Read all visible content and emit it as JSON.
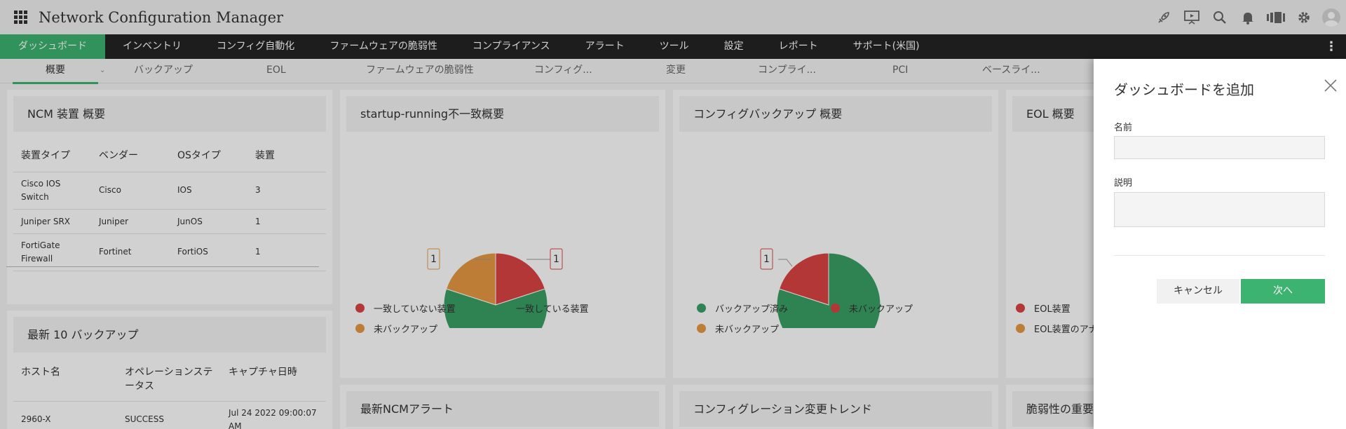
{
  "header": {
    "title": "Network Configuration Manager",
    "icons": [
      "rocket-icon",
      "presentation-icon",
      "search-icon",
      "bell-icon",
      "devices-icon",
      "gear-icon",
      "user-avatar"
    ]
  },
  "nav": {
    "items": [
      "ダッシュボード",
      "インベントリ",
      "コンフィグ自動化",
      "ファームウェアの脆弱性",
      "コンプライアンス",
      "アラート",
      "ツール",
      "設定",
      "レポート",
      "サポート(米国)"
    ],
    "active_index": 0
  },
  "subtabs": {
    "items": [
      "概要",
      "バックアップ",
      "EOL",
      "ファームウェアの脆弱性",
      "コンフィグ...",
      "変更",
      "コンプライ...",
      "PCI",
      "ベースライ..."
    ],
    "active_index": 0
  },
  "device_summary": {
    "title": "NCM 装置 概要",
    "columns": [
      "装置タイプ",
      "ベンダー",
      "OSタイプ",
      "装置"
    ],
    "rows": [
      {
        "type_line1": "Cisco IOS",
        "type_line2": "Switch",
        "vendor": "Cisco",
        "os": "IOS",
        "count": "3"
      },
      {
        "type_line1": "Juniper SRX",
        "type_line2": "",
        "vendor": "Juniper",
        "os": "JunOS",
        "count": "1"
      },
      {
        "type_line1": "FortiGate",
        "type_line2": "Firewall",
        "vendor": "Fortinet",
        "os": "FortiOS",
        "count": "1"
      }
    ]
  },
  "startup_running": {
    "title": "startup-running不一致概要",
    "slices": [
      {
        "label": "一致していない装置",
        "value": 1,
        "color": "#dc4444"
      },
      {
        "label": "一致している装置",
        "value": 3,
        "color": "#3a9f64"
      },
      {
        "label": "未バックアップ",
        "value": 1,
        "color": "#e89944"
      }
    ]
  },
  "config_backup": {
    "title": "コンフィグバックアップ 概要",
    "slices": [
      {
        "label": "バックアップ済み",
        "value": 4,
        "color": "#3a9f64"
      },
      {
        "label": "未バックアップ",
        "value": 1,
        "color": "#dc4444"
      }
    ],
    "legend": [
      {
        "label": "バックアップ済み",
        "color": "#3a9f64"
      },
      {
        "label": "未バックアップ",
        "color": "#dc4444"
      },
      {
        "label": "未バックアップ",
        "color": "#e89944"
      }
    ]
  },
  "eol": {
    "title": "EOL 概要",
    "legend": [
      {
        "label": "EOL装置",
        "color": "#dc4444"
      },
      {
        "label": "EOL装置のアナ",
        "color": "#e89944"
      }
    ]
  },
  "recent_backups": {
    "title": "最新 10 バックアップ",
    "col_host": "ホスト名",
    "col_status_line1": "オペレーションステ",
    "col_status_line2": "ータス",
    "col_time": "キャプチャ日時",
    "row": {
      "host": "2960-X",
      "status": "SUCCESS",
      "time_line1": "Jul 24 2022 09:00:07",
      "time_line2": "AM"
    }
  },
  "widgets_bottom": {
    "alerts_title": "最新NCMアラート",
    "trend_title": "コンフィグレーション変更トレンド",
    "vuln_title": "脆弱性の重要"
  },
  "panel": {
    "title": "ダッシュボードを追加",
    "name_label": "名前",
    "desc_label": "説明",
    "name_value": "",
    "desc_value": "",
    "cancel_label": "キャンセル",
    "next_label": "次へ"
  }
}
